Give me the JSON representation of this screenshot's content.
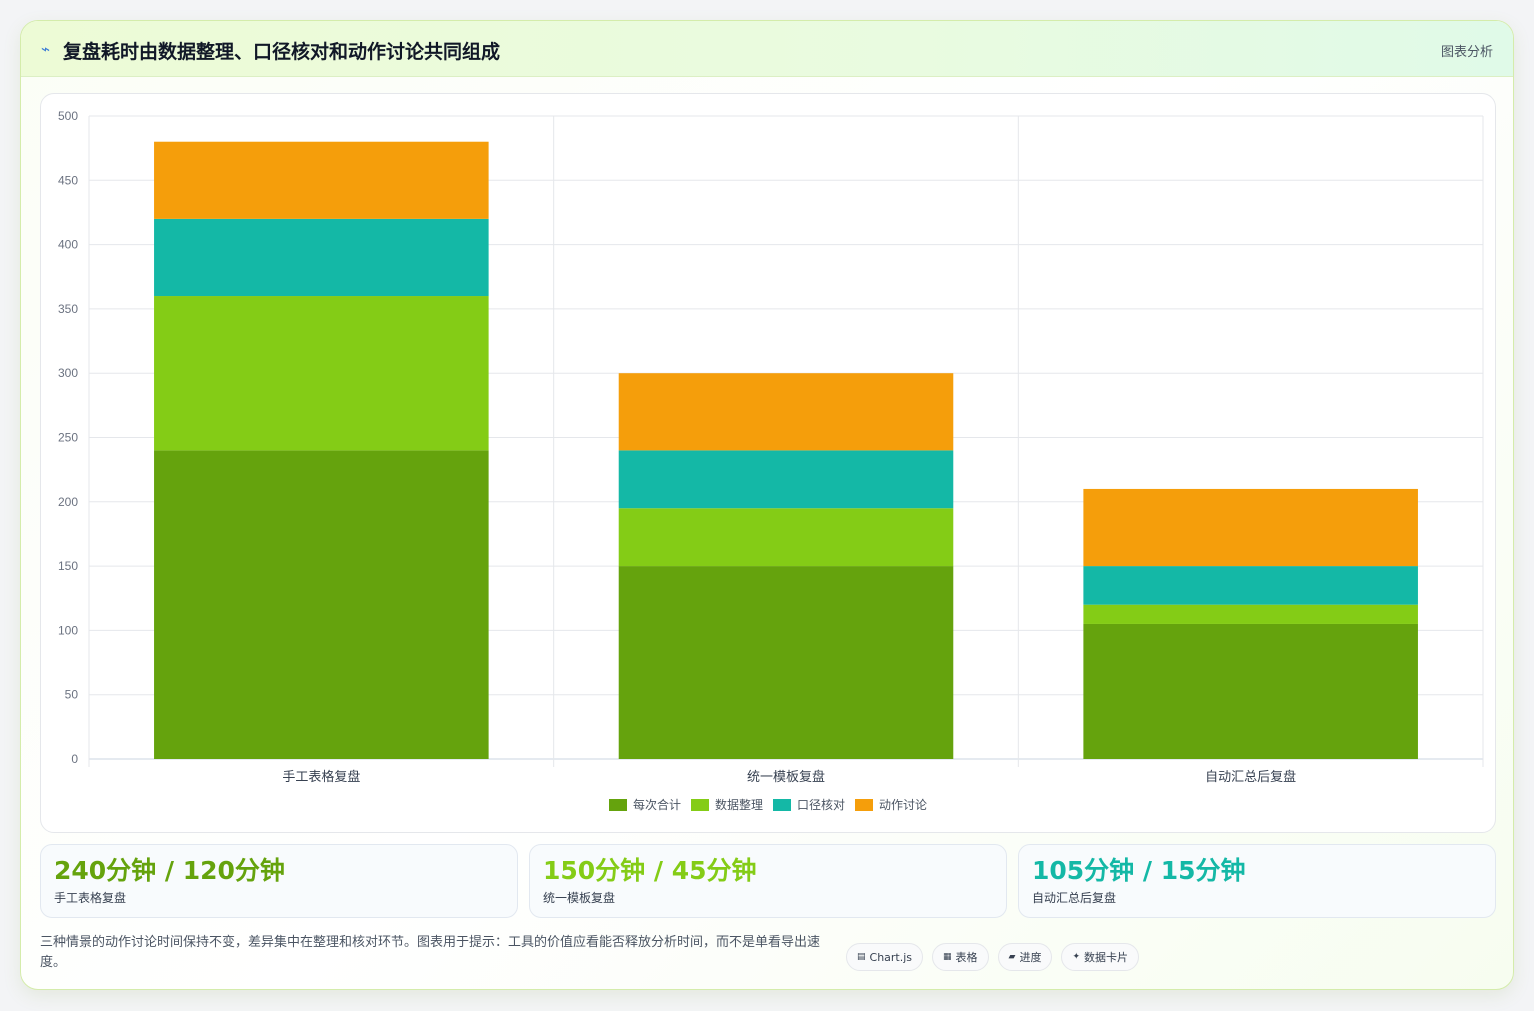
{
  "header": {
    "icon": "trend-line-icon",
    "title": "复盘耗时由数据整理、口径核对和动作讨论共同组成",
    "tag": "图表分析"
  },
  "chart_data": {
    "type": "bar",
    "stacked": true,
    "categories": [
      "手工表格复盘",
      "统一模板复盘",
      "自动汇总后复盘"
    ],
    "series": [
      {
        "name": "每次合计",
        "color": "#65a30d",
        "values": [
          240,
          150,
          105
        ]
      },
      {
        "name": "数据整理",
        "color": "#84cc16",
        "values": [
          120,
          45,
          15
        ]
      },
      {
        "name": "口径核对",
        "color": "#14b8a6",
        "values": [
          60,
          45,
          30
        ]
      },
      {
        "name": "动作讨论",
        "color": "#f59e0b",
        "values": [
          60,
          60,
          60
        ]
      }
    ],
    "yticks": [
      "0",
      "50",
      "100",
      "150",
      "200",
      "250",
      "300",
      "350",
      "400",
      "450",
      "500"
    ],
    "ylim": [
      0,
      500
    ],
    "grid": true,
    "legend_position": "bottom"
  },
  "stats": [
    {
      "value": "240分钟 / 120分钟",
      "label": "手工表格复盘",
      "color": "#65a30d"
    },
    {
      "value": "150分钟 / 45分钟",
      "label": "统一模板复盘",
      "color": "#84cc16"
    },
    {
      "value": "105分钟 / 15分钟",
      "label": "自动汇总后复盘",
      "color": "#14b8a6"
    }
  ],
  "footer": {
    "note": "三种情景的动作讨论时间保持不变，差异集中在整理和核对环节。图表用于提示：工具的价值应看能否释放分析时间，而不是单看导出速度。",
    "chips": [
      {
        "icon": "▤",
        "label": "Chart.js"
      },
      {
        "icon": "▦",
        "label": "表格"
      },
      {
        "icon": "▰",
        "label": "进度"
      },
      {
        "icon": "✦",
        "label": "数据卡片"
      }
    ]
  }
}
